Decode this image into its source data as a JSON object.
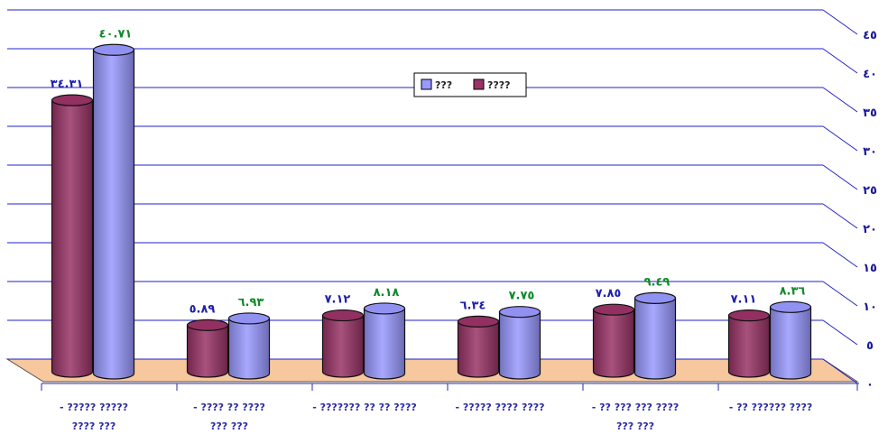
{
  "chart_data": {
    "type": "bar",
    "style": "3d-cylinder",
    "categories": [
      [
        "- ????? ?????",
        "???? ???"
      ],
      [
        "- ???? ?? ????",
        "??? ???"
      ],
      [
        "- ??????? ?? ?? ????",
        ""
      ],
      [
        "- ????? ???? ????",
        ""
      ],
      [
        "- ?? ??? ??? ????",
        "??? ???"
      ],
      [
        "- ?? ?????? ????",
        ""
      ]
    ],
    "series": [
      {
        "name": "????",
        "color": "#993366",
        "label_color": "#1f1fb0",
        "values": [
          34.31,
          5.89,
          7.12,
          6.34,
          7.85,
          7.11
        ],
        "labels": [
          "٣٤.٣١",
          "٥.٨٩",
          "٧.١٢",
          "٦.٣٤",
          "٧.٨٥",
          "٧.١١"
        ]
      },
      {
        "name": "???",
        "color": "#9999ff",
        "label_color": "#0e8a2a",
        "values": [
          40.71,
          6.93,
          8.18,
          7.75,
          9.49,
          8.36
        ],
        "labels": [
          "٤٠.٧١",
          "٦.٩٣",
          "٨.١٨",
          "٧.٧٥",
          "٩.٤٩",
          "٨.٣٦"
        ]
      }
    ],
    "y_ticks": [
      0,
      5,
      10,
      15,
      20,
      25,
      30,
      35,
      40,
      45
    ],
    "y_tick_labels": [
      "٠",
      "٥",
      "١٠",
      "١٥",
      "٢٠",
      "٢٥",
      "٣٠",
      "٣٥",
      "٤٠",
      "٤٥"
    ],
    "ylim": [
      0,
      45
    ],
    "axis_side": "right",
    "grid": true,
    "grid_color": "#2222cc",
    "floor_color": "#f7c79e",
    "legend_placement": "top-center",
    "legend_order": [
      1,
      0
    ]
  }
}
